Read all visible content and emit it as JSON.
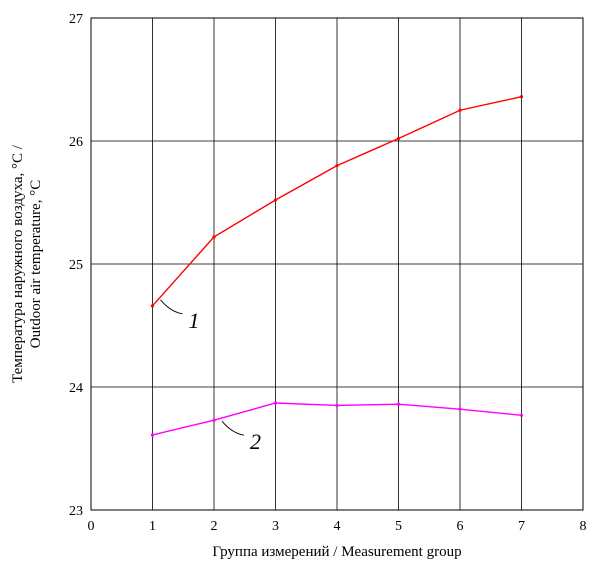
{
  "chart_data": {
    "type": "line",
    "title": "",
    "xlabel": "Группа измерений / Measurement group",
    "ylabel_line1": "Температура наружного воздуха, °C /",
    "ylabel_line2": "Outdoor air temperature, °C",
    "xlim": [
      0,
      8
    ],
    "ylim": [
      23,
      27
    ],
    "xticks": [
      "0",
      "1",
      "2",
      "3",
      "4",
      "5",
      "6",
      "7",
      "8"
    ],
    "yticks": [
      "23",
      "24",
      "25",
      "26",
      "27"
    ],
    "grid": true,
    "x": [
      1,
      2,
      3,
      4,
      5,
      6,
      7
    ],
    "series": [
      {
        "label": "1",
        "color": "#ff0000",
        "values": [
          24.66,
          25.22,
          25.52,
          25.8,
          26.02,
          26.25,
          26.36
        ]
      },
      {
        "label": "2",
        "color": "#ff00ff",
        "values": [
          23.61,
          23.73,
          23.87,
          23.85,
          23.86,
          23.82,
          23.77
        ]
      }
    ]
  }
}
